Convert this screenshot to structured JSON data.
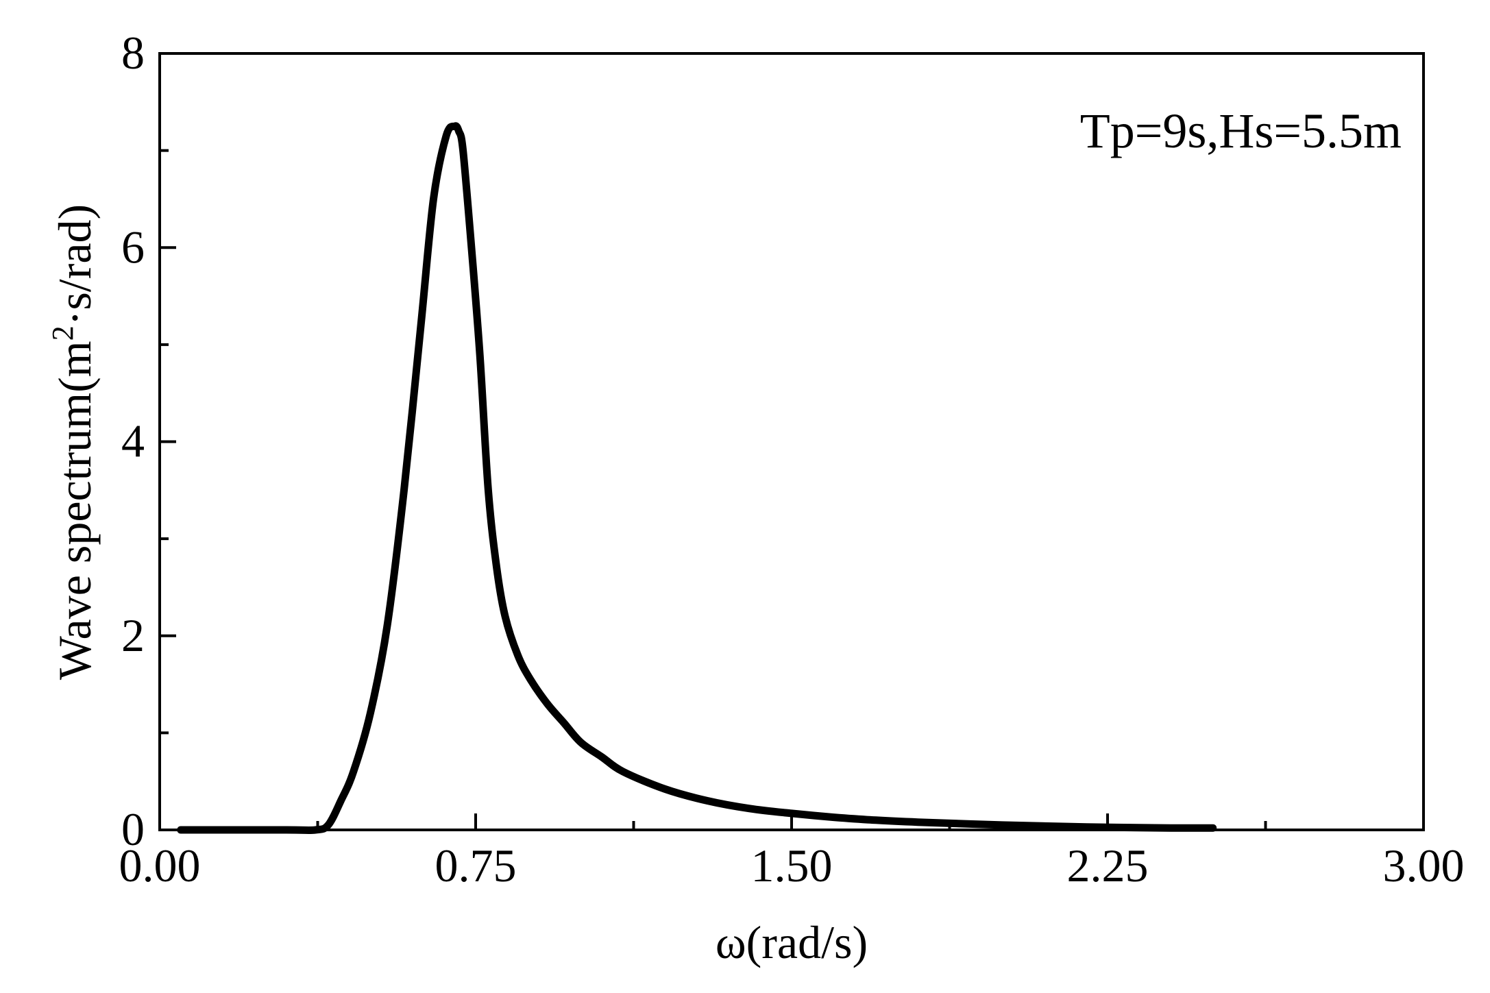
{
  "chart_data": {
    "type": "line",
    "title": "",
    "xlabel": "ω(rad/s)",
    "ylabel_main": "Wave spectrum(m",
    "ylabel_sup": "2",
    "ylabel_tail": "·s/rad)",
    "annotation": "Tp=9s,Hs=5.5m",
    "xlim": [
      0,
      3
    ],
    "ylim": [
      0,
      8
    ],
    "x_ticks": [
      "0.00",
      "0.75",
      "1.50",
      "2.25",
      "3.00"
    ],
    "y_ticks": [
      "0",
      "2",
      "4",
      "6",
      "8"
    ],
    "grid": false,
    "legend": "none",
    "line_color": "#000000",
    "series": [
      {
        "x": [
          0.05,
          0.3,
          0.37,
          0.4,
          0.43,
          0.46,
          0.5,
          0.54,
          0.58,
          0.62,
          0.65,
          0.68,
          0.7,
          0.71,
          0.72,
          0.74,
          0.76,
          0.78,
          0.8,
          0.82,
          0.85,
          0.88,
          0.92,
          0.96,
          1.0,
          1.05,
          1.1,
          1.2,
          1.3,
          1.4,
          1.5,
          1.6,
          1.7,
          1.8,
          2.0,
          2.2,
          2.4,
          2.5
        ],
        "y": [
          0.0,
          0.0,
          0.0,
          0.05,
          0.3,
          0.6,
          1.2,
          2.1,
          3.5,
          5.2,
          6.5,
          7.15,
          7.25,
          7.2,
          7.0,
          6.0,
          4.9,
          3.5,
          2.7,
          2.2,
          1.8,
          1.55,
          1.3,
          1.1,
          0.9,
          0.75,
          0.6,
          0.42,
          0.3,
          0.22,
          0.17,
          0.13,
          0.1,
          0.08,
          0.05,
          0.03,
          0.02,
          0.02
        ]
      }
    ]
  }
}
